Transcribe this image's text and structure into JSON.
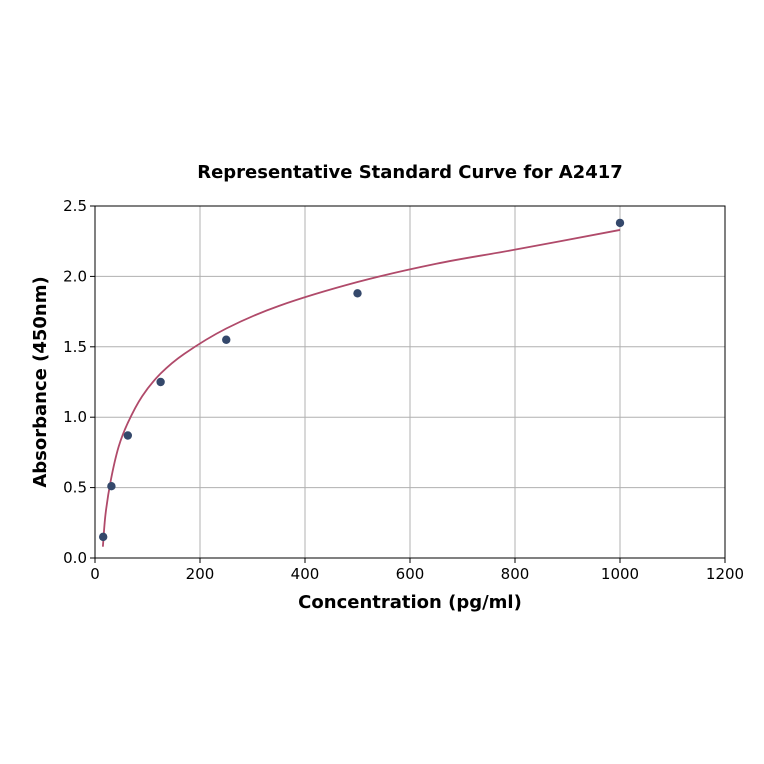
{
  "chart_data": {
    "type": "scatter",
    "title": "Representative Standard Curve for A2417",
    "xlabel": "Concentration (pg/ml)",
    "ylabel": "Absorbance (450nm)",
    "xlim": [
      0,
      1200
    ],
    "ylim": [
      0,
      2.5
    ],
    "x_ticks": [
      0,
      200,
      400,
      600,
      800,
      1000,
      1200
    ],
    "y_ticks": [
      0.0,
      0.5,
      1.0,
      1.5,
      2.0,
      2.5
    ],
    "x_tick_labels": [
      "0",
      "200",
      "400",
      "600",
      "800",
      "1000",
      "1200"
    ],
    "y_tick_labels": [
      "0.0",
      "0.5",
      "1.0",
      "1.5",
      "2.0",
      "2.5"
    ],
    "grid": true,
    "series": [
      {
        "kind": "points",
        "x": [
          15.6,
          31.25,
          62.5,
          125,
          250,
          500,
          1000
        ],
        "y": [
          0.15,
          0.51,
          0.87,
          1.25,
          1.55,
          1.88,
          2.38
        ]
      },
      {
        "kind": "fit-curve",
        "x": [
          15,
          20,
          30,
          45,
          62.5,
          90,
          125,
          170,
          250,
          350,
          500,
          650,
          800,
          1000
        ],
        "y": [
          0.08,
          0.31,
          0.55,
          0.79,
          0.96,
          1.15,
          1.31,
          1.45,
          1.63,
          1.79,
          1.96,
          2.09,
          2.19,
          2.33
        ]
      }
    ],
    "colors": {
      "points": "#34486b",
      "curve": "#b04a6a",
      "grid": "#b0b0b0",
      "axis": "#000000"
    }
  }
}
